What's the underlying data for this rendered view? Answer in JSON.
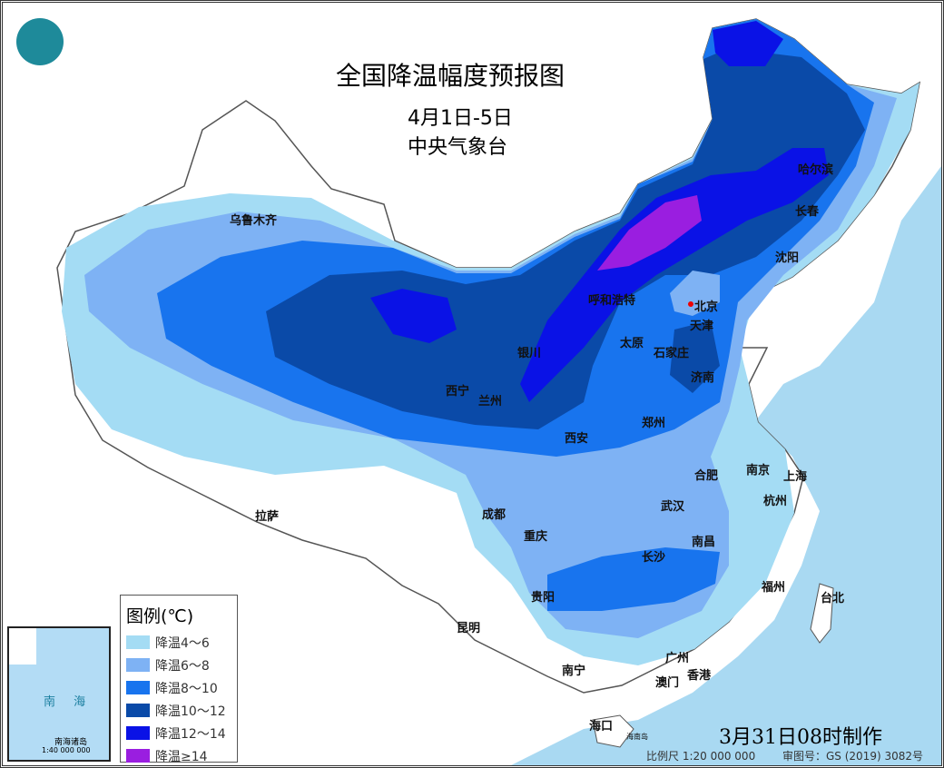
{
  "title": "全国降温幅度预报图",
  "period": "4月1日-5日",
  "issuer": "中央气象台",
  "issued": "3月31日08时制作",
  "scale": "比例尺 1:20 000 000",
  "review_no": "审图号：GS (2019) 3082号",
  "legend": {
    "title": "图例(℃)",
    "items": [
      {
        "label": "降温4～6",
        "color": "#a4dcf4"
      },
      {
        "label": "降温6～8",
        "color": "#7eb2f4"
      },
      {
        "label": "降温8～10",
        "color": "#1874ee"
      },
      {
        "label": "降温10～12",
        "color": "#0a4aa8"
      },
      {
        "label": "降温12～14",
        "color": "#0a12e6"
      },
      {
        "label": "降温≥14",
        "color": "#9a1ee0"
      }
    ]
  },
  "inset": {
    "sea": "南 海",
    "caption": "南海诸岛",
    "scale": "1:40 000 000",
    "island": "海南岛"
  },
  "cities": [
    "乌鲁木齐",
    "呼和浩特",
    "北京",
    "天津",
    "太原",
    "石家庄",
    "济南",
    "银川",
    "西宁",
    "兰州",
    "西安",
    "郑州",
    "哈尔滨",
    "长春",
    "沈阳",
    "合肥",
    "南京",
    "上海",
    "杭州",
    "武汉",
    "成都",
    "重庆",
    "拉萨",
    "长沙",
    "南昌",
    "贵阳",
    "福州",
    "台北",
    "昆明",
    "南宁",
    "广州",
    "澳门",
    "香港",
    "海口",
    "海南岛"
  ],
  "colors": {
    "sea": "#a9d9f2",
    "land": "#ffffff",
    "border": "#555555"
  }
}
